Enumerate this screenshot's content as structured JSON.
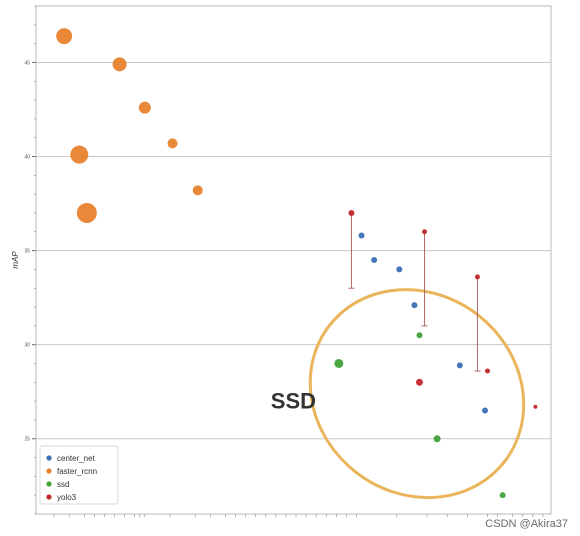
{
  "chart_data": {
    "type": "scatter",
    "xlabel": "",
    "ylabel": "mAP",
    "x_scale": "log",
    "y_ticks": [
      25,
      30,
      35,
      40,
      45
    ],
    "y_tick_labels": [
      "25",
      "30",
      "35",
      "40",
      "45"
    ],
    "x_ticks": [],
    "x_tick_labels": [],
    "xlim": [
      0,
      1
    ],
    "ylim": [
      21,
      48
    ],
    "grid": "horizontal",
    "legend_position": "bottom-left",
    "series": [
      {
        "name": "center_net",
        "color": "#3b6fb6",
        "points": [
          {
            "x": 0.63,
            "y": 35.8,
            "size": 3
          },
          {
            "x": 0.655,
            "y": 34.5,
            "size": 3
          },
          {
            "x": 0.705,
            "y": 34.0,
            "size": 3
          },
          {
            "x": 0.735,
            "y": 32.1,
            "size": 3
          },
          {
            "x": 0.825,
            "y": 28.9,
            "size": 3
          },
          {
            "x": 0.875,
            "y": 26.5,
            "size": 3
          }
        ]
      },
      {
        "name": "faster_rcnn",
        "color": "#e8822e",
        "points": [
          {
            "x": 0.04,
            "y": 46.4,
            "size": 8
          },
          {
            "x": 0.15,
            "y": 44.9,
            "size": 7
          },
          {
            "x": 0.2,
            "y": 42.6,
            "size": 6
          },
          {
            "x": 0.255,
            "y": 40.7,
            "size": 5
          },
          {
            "x": 0.07,
            "y": 40.1,
            "size": 9
          },
          {
            "x": 0.085,
            "y": 37.0,
            "size": 10
          },
          {
            "x": 0.305,
            "y": 38.2,
            "size": 5
          }
        ]
      },
      {
        "name": "ssd",
        "color": "#3fa33a",
        "points": [
          {
            "x": 0.585,
            "y": 29.0,
            "size": 4.5
          },
          {
            "x": 0.745,
            "y": 30.5,
            "size": 3
          },
          {
            "x": 0.78,
            "y": 25.0,
            "size": 3.5
          },
          {
            "x": 0.91,
            "y": 22.0,
            "size": 3
          }
        ]
      },
      {
        "name": "yolo3",
        "color": "#c0282d",
        "points": [
          {
            "x": 0.61,
            "y": 37.0,
            "size": 3,
            "err": [
              33.0,
              37.0
            ]
          },
          {
            "x": 0.755,
            "y": 36.0,
            "size": 2.5,
            "err": [
              31.0,
              36.0
            ]
          },
          {
            "x": 0.86,
            "y": 33.6,
            "size": 2.5,
            "err": [
              28.6,
              33.6
            ]
          },
          {
            "x": 0.745,
            "y": 28.0,
            "size": 3.5
          },
          {
            "x": 0.88,
            "y": 28.6,
            "size": 2.5
          },
          {
            "x": 0.975,
            "y": 26.7,
            "size": 2
          }
        ]
      }
    ],
    "annotations": [
      {
        "text": "SSD",
        "x": 0.45,
        "y": 26.6
      }
    ],
    "highlight_ellipse": {
      "color": "#eab45a",
      "cx": 0.74,
      "cy": 27.4,
      "rx": 0.22,
      "ry": 4.6,
      "angle": 38
    }
  },
  "watermark": "CSDN @Akira37"
}
